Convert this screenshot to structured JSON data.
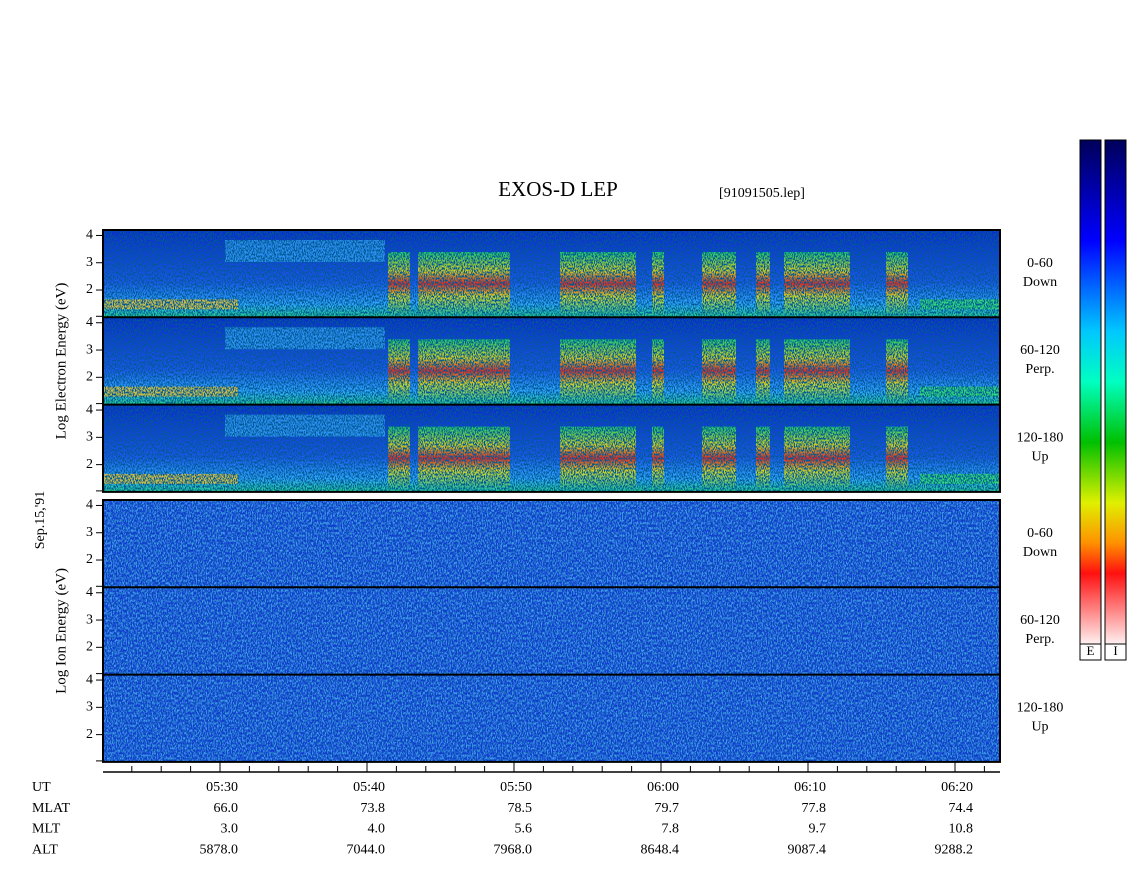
{
  "chart_data": {
    "type": "spectrogram",
    "title": "EXOS-D LEP",
    "file": "[91091505.lep]",
    "date": "Sep.15,'91",
    "xticks": [
      "05:30",
      "05:40",
      "05:50",
      "06:00",
      "06:10",
      "06:20"
    ],
    "ylim": [
      1,
      4.2
    ],
    "yticks": [
      2,
      3,
      4
    ],
    "groups": [
      {
        "ylabel": "Log  Electron  Energy (eV)",
        "species": "electron",
        "panels": [
          [
            "0-60",
            "Down"
          ],
          [
            "60-120",
            "Perp."
          ],
          [
            "120-180",
            "Up"
          ]
        ]
      },
      {
        "ylabel": "Log  Ion  Energy (eV)",
        "species": "ion",
        "panels": [
          [
            "0-60",
            "Down"
          ],
          [
            "60-120",
            "Perp."
          ],
          [
            "120-180",
            "Up"
          ]
        ]
      }
    ],
    "orbit": [
      {
        "label": "UT"
      },
      {
        "label": "MLAT",
        "values": [
          "66.0",
          "73.8",
          "78.5",
          "79.7",
          "77.8",
          "74.4"
        ]
      },
      {
        "label": "MLT",
        "values": [
          "3.0",
          "4.0",
          "5.6",
          "7.8",
          "9.7",
          "10.8"
        ]
      },
      {
        "label": "ALT",
        "values": [
          "5878.0",
          "7044.0",
          "7968.0",
          "8648.4",
          "9087.4",
          "9288.2"
        ]
      }
    ],
    "colorbars": [
      "E",
      "I"
    ]
  }
}
